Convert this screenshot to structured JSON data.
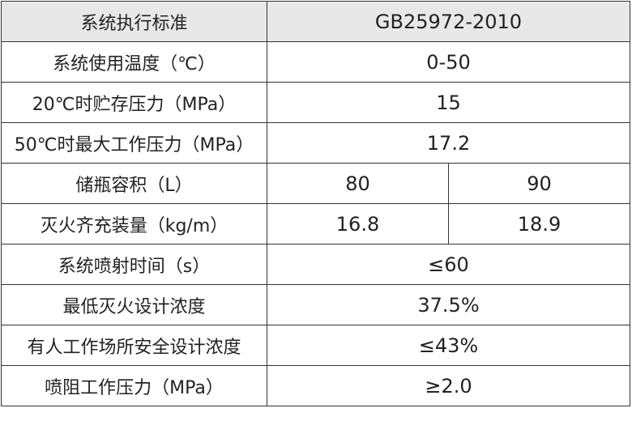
{
  "table": {
    "header": {
      "label": "系统执行标准",
      "value": "GB25972-2010"
    },
    "rows": [
      {
        "label": "系统使用温度（℃）",
        "value": "0-50"
      },
      {
        "label": "20℃时贮存压力（MPa）",
        "value": "15"
      },
      {
        "label": "50℃时最大工作压力（MPa）",
        "value": "17.2"
      },
      {
        "label": "储瓶容积（L）",
        "values": [
          "80",
          "90"
        ]
      },
      {
        "label": "灭火齐充装量（kg/m）",
        "values": [
          "16.8",
          "18.9"
        ]
      },
      {
        "label": "系统喷射时间（s）",
        "value": "≤60"
      },
      {
        "label": "最低灭火设计浓度",
        "value": "37.5%"
      },
      {
        "label": "有人工作场所安全设计浓度",
        "value": "≤43%"
      },
      {
        "label": "喷阻工作压力（MPa）",
        "value": "≥2.0"
      }
    ]
  }
}
